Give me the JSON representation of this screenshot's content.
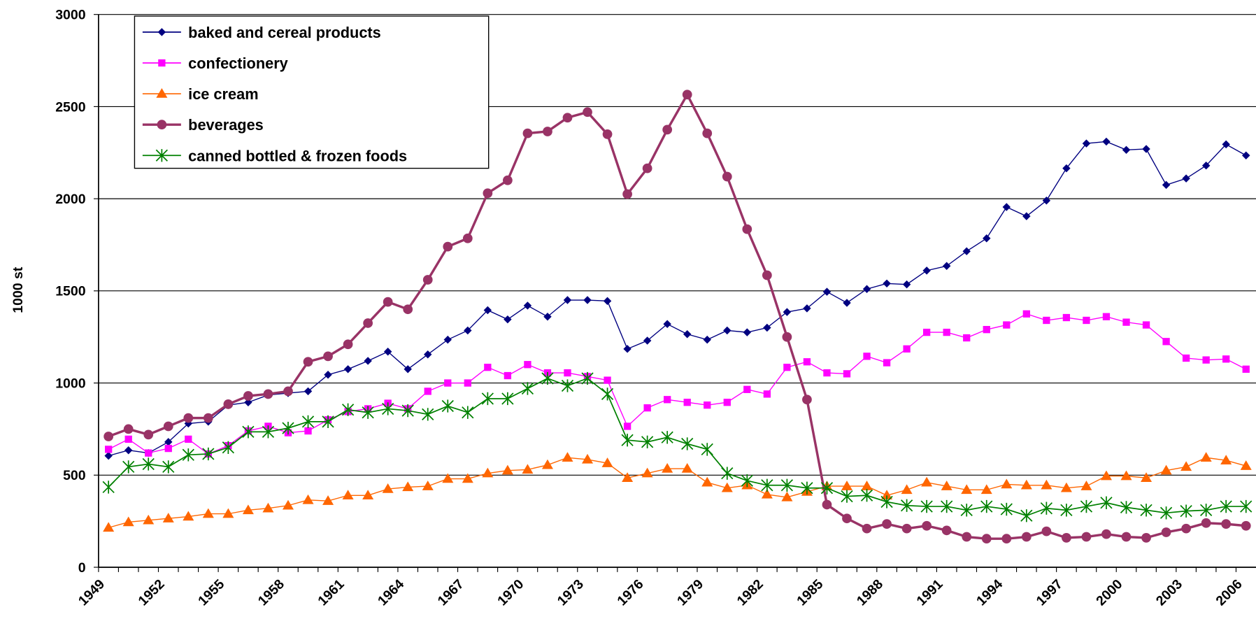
{
  "chart_data": {
    "type": "line",
    "y_label": "1000 st",
    "categories": [
      "1949",
      null,
      null,
      "1952",
      null,
      null,
      "1955",
      null,
      null,
      "1958",
      null,
      null,
      "1961",
      null,
      null,
      "1964",
      null,
      null,
      "1967",
      null,
      null,
      "1970",
      null,
      null,
      "1973",
      null,
      null,
      "1976",
      null,
      null,
      "1979",
      null,
      null,
      "1982",
      null,
      null,
      "1985",
      null,
      null,
      "1988",
      null,
      null,
      "1991",
      null,
      null,
      "1994",
      null,
      null,
      "1997",
      null,
      null,
      "2000",
      null,
      null,
      "2003",
      null,
      null,
      "2006"
    ],
    "ylim": [
      0,
      3000
    ],
    "yticks": [
      0,
      500,
      1000,
      1500,
      2000,
      2500,
      3000
    ],
    "grid": true,
    "legend": "upper left",
    "series": [
      {
        "name": "baked and cereal products",
        "color": "#000080",
        "marker": "diamond",
        "values": [
          605,
          635,
          620,
          680,
          780,
          790,
          880,
          895,
          935,
          945,
          955,
          1045,
          1075,
          1120,
          1170,
          1075,
          1155,
          1235,
          1285,
          1395,
          1345,
          1420,
          1360,
          1450,
          1450,
          1445,
          1185,
          1230,
          1320,
          1265,
          1235,
          1285,
          1275,
          1300,
          1385,
          1405,
          1495,
          1435,
          1510,
          1540,
          1535,
          1610,
          1635,
          1715,
          1785,
          1955,
          1905,
          1990,
          2165,
          2300,
          2310,
          2265,
          2270,
          2075,
          2110,
          2180,
          2295,
          2235
        ]
      },
      {
        "name": "confectionery",
        "color": "#ff00ff",
        "marker": "square",
        "values": [
          640,
          695,
          620,
          645,
          695,
          615,
          660,
          740,
          765,
          730,
          740,
          800,
          845,
          860,
          890,
          860,
          955,
          1000,
          1000,
          1085,
          1040,
          1100,
          1055,
          1055,
          1035,
          1015,
          765,
          865,
          910,
          895,
          880,
          895,
          965,
          940,
          1085,
          1115,
          1055,
          1050,
          1145,
          1110,
          1185,
          1275,
          1275,
          1245,
          1290,
          1315,
          1375,
          1340,
          1355,
          1340,
          1360,
          1330,
          1315,
          1225,
          1135,
          1125,
          1130,
          1075
        ]
      },
      {
        "name": "ice cream",
        "color": "#ff6600",
        "marker": "triangle",
        "values": [
          215,
          245,
          255,
          265,
          275,
          290,
          290,
          310,
          320,
          335,
          365,
          360,
          390,
          390,
          425,
          435,
          440,
          480,
          480,
          510,
          525,
          530,
          555,
          595,
          585,
          565,
          485,
          510,
          535,
          535,
          460,
          430,
          445,
          395,
          380,
          410,
          440,
          440,
          440,
          390,
          420,
          460,
          440,
          420,
          420,
          450,
          445,
          445,
          430,
          440,
          495,
          495,
          485,
          525,
          545,
          595,
          580,
          550
        ]
      },
      {
        "name": "beverages",
        "color": "#993366",
        "marker": "circle",
        "values": [
          710,
          750,
          720,
          765,
          810,
          810,
          885,
          930,
          940,
          955,
          1115,
          1145,
          1210,
          1325,
          1440,
          1400,
          1560,
          1740,
          1785,
          2030,
          2100,
          2355,
          2365,
          2440,
          2470,
          2350,
          2025,
          2165,
          2375,
          2565,
          2355,
          2120,
          1835,
          1585,
          1250,
          910,
          340,
          265,
          210,
          235,
          210,
          225,
          200,
          165,
          155,
          155,
          165,
          195,
          160,
          165,
          180,
          165,
          160,
          190,
          210,
          240,
          235,
          225
        ]
      },
      {
        "name": "canned bottled & frozen foods",
        "color": "#008000",
        "marker": "star",
        "values": [
          435,
          545,
          560,
          545,
          610,
          615,
          650,
          735,
          735,
          755,
          790,
          790,
          855,
          840,
          860,
          850,
          830,
          875,
          840,
          915,
          915,
          970,
          1025,
          985,
          1025,
          940,
          690,
          680,
          705,
          670,
          640,
          510,
          470,
          445,
          445,
          430,
          430,
          385,
          390,
          355,
          335,
          330,
          330,
          310,
          330,
          315,
          280,
          320,
          310,
          330,
          350,
          325,
          310,
          295,
          305,
          310,
          330,
          330
        ]
      }
    ]
  }
}
